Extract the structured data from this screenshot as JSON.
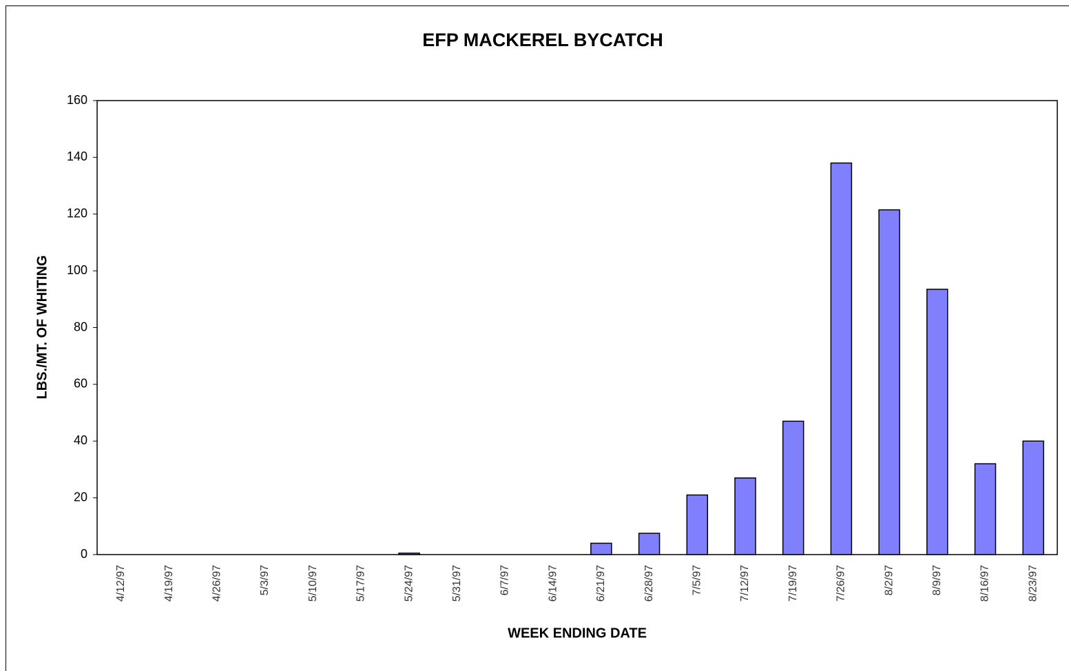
{
  "chart_data": {
    "type": "bar",
    "title": "EFP MACKEREL BYCATCH",
    "x_label": "WEEK ENDING DATE",
    "y_label": "LBS./MT. OF WHITING",
    "categories": [
      "4/12/97",
      "4/19/97",
      "4/26/97",
      "5/3/97",
      "5/10/97",
      "5/17/97",
      "5/24/97",
      "5/31/97",
      "6/7/97",
      "6/14/97",
      "6/21/97",
      "6/28/97",
      "7/5/97",
      "7/12/97",
      "7/19/97",
      "7/26/97",
      "8/2/97",
      "8/9/97",
      "8/16/97",
      "8/23/97"
    ],
    "values": [
      0,
      0,
      0,
      0,
      0,
      0,
      0.5,
      0,
      0,
      0,
      4,
      7.5,
      21,
      27,
      47,
      138,
      121.5,
      93.5,
      32,
      40
    ],
    "color": "#8080ff",
    "ylim": [
      0,
      160
    ],
    "yticks": [
      0,
      20,
      40,
      60,
      80,
      100,
      120,
      140,
      160
    ],
    "grid": false
  }
}
